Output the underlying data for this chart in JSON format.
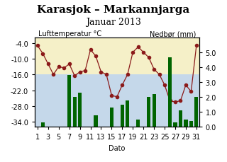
{
  "title1": "Karasjok – Markannjarga",
  "title2": "Januar 2013",
  "ylabel_left": "Lufttemperatur °C",
  "ylabel_right": "Nedbør (mm)",
  "xlabel": "Dato",
  "days": [
    1,
    2,
    3,
    4,
    5,
    6,
    7,
    8,
    9,
    10,
    11,
    12,
    13,
    14,
    15,
    16,
    17,
    18,
    19,
    20,
    21,
    22,
    23,
    24,
    25,
    26,
    27,
    28,
    29,
    30,
    31
  ],
  "temperature": [
    -5.0,
    -8.0,
    -12.0,
    -16.0,
    -13.0,
    -13.5,
    -12.0,
    -16.5,
    -15.0,
    -14.5,
    -6.5,
    -9.0,
    -15.0,
    -16.0,
    -24.0,
    -24.5,
    -20.0,
    -16.0,
    -7.5,
    -5.5,
    -7.5,
    -9.5,
    -14.0,
    -16.0,
    -20.0,
    -26.0,
    -26.5,
    -26.0,
    -20.0,
    -22.5,
    -5.0
  ],
  "precipitation": [
    0.0,
    0.3,
    0.0,
    0.0,
    0.0,
    0.0,
    3.5,
    2.0,
    2.3,
    0.0,
    0.0,
    0.8,
    0.0,
    0.0,
    1.3,
    0.0,
    1.5,
    1.8,
    0.0,
    0.5,
    0.0,
    2.0,
    2.2,
    0.0,
    0.0,
    4.7,
    0.3,
    1.1,
    0.5,
    0.4,
    2.0
  ],
  "temp_ylim": [
    -36,
    -2
  ],
  "precip_ylim": [
    0,
    6.0
  ],
  "temp_yticks": [
    -34.0,
    -28.0,
    -22.0,
    -16.0,
    -10.0,
    -4.0
  ],
  "precip_yticks": [
    0.0,
    1.0,
    2.0,
    3.0,
    4.0,
    5.0
  ],
  "bg_color_top": "#f5f0c8",
  "bg_color_bottom": "#c5d8ea",
  "bg_split": -16.0,
  "bar_color": "#006400",
  "line_color": "#8b1a1a",
  "marker_color": "#8b1a1a",
  "title_fontsize": 11,
  "subtitle_fontsize": 9,
  "axis_label_fontsize": 7,
  "tick_fontsize": 7
}
